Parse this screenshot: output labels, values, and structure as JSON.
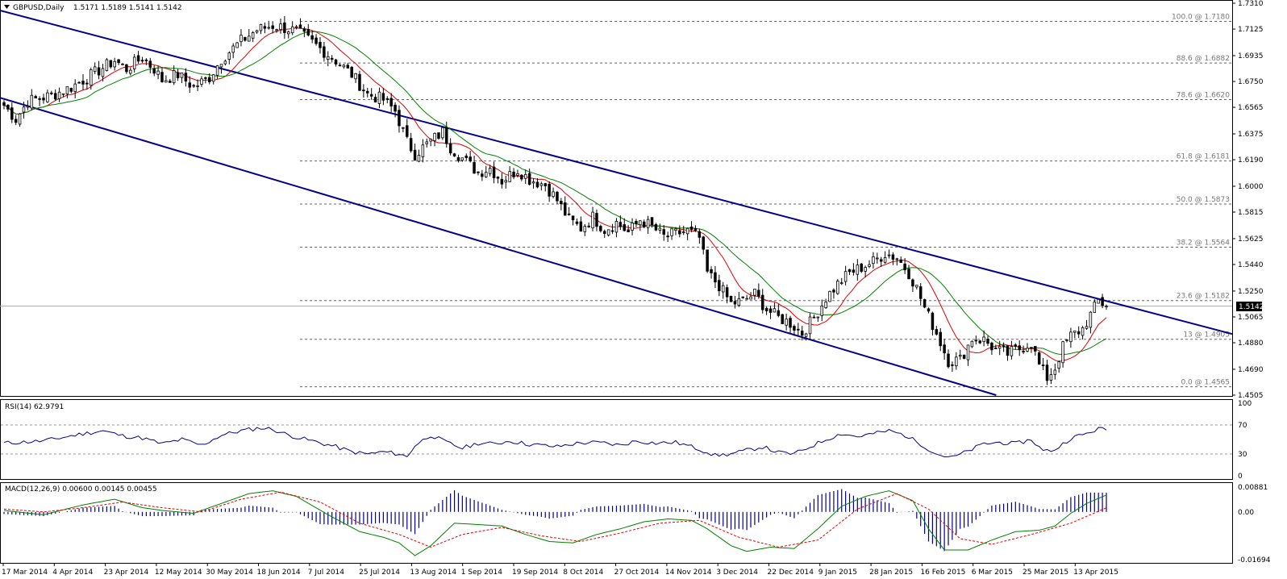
{
  "chart_data": [
    {
      "type": "candlestick",
      "symbol_title": "GBPUSD,Daily",
      "ohlc_readout": "1.5171 1.5189 1.5141 1.5142",
      "current_price_label": "1.5142",
      "ylim": [
        1.4505,
        1.731
      ],
      "y_ticks": [
        "1.7310",
        "1.7125",
        "1.6935",
        "1.6750",
        "1.6565",
        "1.6375",
        "1.6190",
        "1.6000",
        "1.5815",
        "1.5625",
        "1.5440",
        "1.5250",
        "1.5065",
        "1.4880",
        "1.4690",
        "1.4505"
      ],
      "x_ticks": [
        "17 Mar 2014",
        "4 Apr 2014",
        "23 Apr 2014",
        "12 May 2014",
        "30 May 2014",
        "18 Jun 2014",
        "7 Jul 2014",
        "25 Jul 2014",
        "13 Aug 2014",
        "1 Sep 2014",
        "19 Sep 2014",
        "8 Oct 2014",
        "27 Oct 2014",
        "14 Nov 2014",
        "3 Dec 2014",
        "22 Dec 2014",
        "9 Jan 2015",
        "28 Jan 2015",
        "16 Feb 2015",
        "6 Mar 2015",
        "25 Mar 2015",
        "13 Apr 2015"
      ],
      "fibonacci_levels": [
        {
          "label": "100.0 @ 1.7180",
          "price": 1.718
        },
        {
          "label": "88.6 @ 1.6882",
          "price": 1.6882
        },
        {
          "label": "78.6 @ 1.6620",
          "price": 1.662
        },
        {
          "label": "61.8 @ 1.6181",
          "price": 1.6181
        },
        {
          "label": "50.0 @ 1.5873",
          "price": 1.5873
        },
        {
          "label": "38.2 @ 1.5564",
          "price": 1.5564
        },
        {
          "label": "23.6 @ 1.5182",
          "price": 1.5182
        },
        {
          "label": "13 @ 1.4905",
          "price": 1.4905
        },
        {
          "label": "0.0 @ 1.4565",
          "price": 1.4565
        }
      ],
      "price_path": [
        [
          0,
          1.658
        ],
        [
          3,
          1.648
        ],
        [
          6,
          1.661
        ],
        [
          12,
          1.665
        ],
        [
          17,
          1.671
        ],
        [
          20,
          1.676
        ],
        [
          24,
          1.683
        ],
        [
          28,
          1.69
        ],
        [
          31,
          1.684
        ],
        [
          35,
          1.692
        ],
        [
          38,
          1.684
        ],
        [
          40,
          1.676
        ],
        [
          44,
          1.68
        ],
        [
          48,
          1.671
        ],
        [
          52,
          1.678
        ],
        [
          55,
          1.691
        ],
        [
          60,
          1.704
        ],
        [
          64,
          1.712
        ],
        [
          68,
          1.715
        ],
        [
          70,
          1.714
        ],
        [
          74,
          1.711
        ],
        [
          78,
          1.703
        ],
        [
          84,
          1.69
        ],
        [
          88,
          1.68
        ],
        [
          92,
          1.666
        ],
        [
          96,
          1.662
        ],
        [
          99,
          1.654
        ],
        [
          102,
          1.632
        ],
        [
          104,
          1.623
        ],
        [
          107,
          1.63
        ],
        [
          111,
          1.639
        ],
        [
          113,
          1.628
        ],
        [
          116,
          1.62
        ],
        [
          120,
          1.61
        ],
        [
          123,
          1.613
        ],
        [
          126,
          1.604
        ],
        [
          130,
          1.612
        ],
        [
          133,
          1.605
        ],
        [
          137,
          1.601
        ],
        [
          140,
          1.59
        ],
        [
          143,
          1.576
        ],
        [
          146,
          1.57
        ],
        [
          149,
          1.578
        ],
        [
          152,
          1.569
        ],
        [
          155,
          1.574
        ],
        [
          158,
          1.567
        ],
        [
          161,
          1.576
        ],
        [
          164,
          1.571
        ],
        [
          167,
          1.564
        ],
        [
          170,
          1.566
        ],
        [
          173,
          1.568
        ],
        [
          176,
          1.563
        ],
        [
          178,
          1.538
        ],
        [
          181,
          1.529
        ],
        [
          184,
          1.516
        ],
        [
          187,
          1.518
        ],
        [
          190,
          1.523
        ],
        [
          193,
          1.512
        ],
        [
          196,
          1.506
        ],
        [
          199,
          1.502
        ],
        [
          202,
          1.495
        ],
        [
          205,
          1.506
        ],
        [
          208,
          1.52
        ],
        [
          211,
          1.53
        ],
        [
          214,
          1.538
        ],
        [
          217,
          1.542
        ],
        [
          220,
          1.546
        ],
        [
          223,
          1.552
        ],
        [
          226,
          1.549
        ],
        [
          229,
          1.538
        ],
        [
          231,
          1.527
        ],
        [
          233,
          1.513
        ],
        [
          236,
          1.495
        ],
        [
          239,
          1.475
        ],
        [
          242,
          1.476
        ],
        [
          245,
          1.491
        ],
        [
          248,
          1.49
        ],
        [
          251,
          1.483
        ],
        [
          254,
          1.48
        ],
        [
          257,
          1.484
        ],
        [
          260,
          1.488
        ],
        [
          262,
          1.472
        ],
        [
          264,
          1.463
        ],
        [
          266,
          1.47
        ],
        [
          268,
          1.485
        ],
        [
          270,
          1.493
        ],
        [
          273,
          1.498
        ],
        [
          275,
          1.508
        ],
        [
          277,
          1.518
        ],
        [
          279,
          1.5142
        ]
      ],
      "rsi": {
        "label": "RSI(14) 62.9791",
        "ylim": [
          0,
          100
        ],
        "ticks": [
          "100",
          "70",
          "30",
          "0"
        ],
        "levels": [
          70,
          30
        ],
        "values": [
          [
            0,
            45
          ],
          [
            10,
            48
          ],
          [
            20,
            58
          ],
          [
            25,
            62
          ],
          [
            30,
            55
          ],
          [
            35,
            52
          ],
          [
            40,
            44
          ],
          [
            45,
            50
          ],
          [
            50,
            42
          ],
          [
            55,
            56
          ],
          [
            60,
            62
          ],
          [
            65,
            66
          ],
          [
            68,
            64
          ],
          [
            72,
            56
          ],
          [
            78,
            48
          ],
          [
            84,
            40
          ],
          [
            88,
            33
          ],
          [
            92,
            30
          ],
          [
            96,
            33
          ],
          [
            100,
            30
          ],
          [
            102,
            26
          ],
          [
            104,
            42
          ],
          [
            108,
            56
          ],
          [
            112,
            46
          ],
          [
            116,
            38
          ],
          [
            120,
            45
          ],
          [
            124,
            44
          ],
          [
            128,
            48
          ],
          [
            132,
            44
          ],
          [
            136,
            42
          ],
          [
            140,
            40
          ],
          [
            144,
            44
          ],
          [
            148,
            46
          ],
          [
            152,
            45
          ],
          [
            156,
            42
          ],
          [
            160,
            48
          ],
          [
            165,
            45
          ],
          [
            170,
            46
          ],
          [
            174,
            40
          ],
          [
            178,
            33
          ],
          [
            180,
            28
          ],
          [
            184,
            30
          ],
          [
            188,
            35
          ],
          [
            192,
            40
          ],
          [
            196,
            32
          ],
          [
            200,
            30
          ],
          [
            204,
            40
          ],
          [
            208,
            50
          ],
          [
            212,
            58
          ],
          [
            216,
            54
          ],
          [
            220,
            58
          ],
          [
            224,
            62
          ],
          [
            228,
            56
          ],
          [
            232,
            44
          ],
          [
            236,
            30
          ],
          [
            240,
            25
          ],
          [
            244,
            34
          ],
          [
            248,
            44
          ],
          [
            252,
            46
          ],
          [
            256,
            44
          ],
          [
            260,
            50
          ],
          [
            263,
            34
          ],
          [
            266,
            36
          ],
          [
            270,
            52
          ],
          [
            274,
            58
          ],
          [
            277,
            65
          ],
          [
            279,
            62.9791
          ]
        ]
      },
      "macd": {
        "label": "MACD(12,26,9) 0.00600 0.00145 0.00455",
        "ylim": [
          -0.01694,
          0.00881
        ],
        "ticks": [
          "0.00881",
          "0.00",
          "-0.01694"
        ],
        "macd_line": [
          [
            0,
            0.0005
          ],
          [
            10,
            -0.001
          ],
          [
            20,
            0.0025
          ],
          [
            28,
            0.0045
          ],
          [
            35,
            0.0015
          ],
          [
            40,
            0.0005
          ],
          [
            48,
            -0.0005
          ],
          [
            55,
            0.003
          ],
          [
            62,
            0.0065
          ],
          [
            68,
            0.0075
          ],
          [
            74,
            0.0055
          ],
          [
            82,
            -0.001
          ],
          [
            90,
            -0.007
          ],
          [
            96,
            -0.009
          ],
          [
            100,
            -0.011
          ],
          [
            104,
            -0.0155
          ],
          [
            108,
            -0.012
          ],
          [
            114,
            -0.004
          ],
          [
            120,
            -0.0045
          ],
          [
            126,
            -0.005
          ],
          [
            132,
            -0.008
          ],
          [
            138,
            -0.0105
          ],
          [
            144,
            -0.011
          ],
          [
            150,
            -0.008
          ],
          [
            156,
            -0.006
          ],
          [
            162,
            -0.0035
          ],
          [
            168,
            -0.0025
          ],
          [
            174,
            -0.003
          ],
          [
            178,
            -0.006
          ],
          [
            184,
            -0.012
          ],
          [
            188,
            -0.014
          ],
          [
            194,
            -0.0125
          ],
          [
            200,
            -0.013
          ],
          [
            206,
            -0.006
          ],
          [
            212,
            0.002
          ],
          [
            218,
            0.0055
          ],
          [
            224,
            0.0075
          ],
          [
            230,
            0.004
          ],
          [
            234,
            -0.006
          ],
          [
            238,
            -0.0135
          ],
          [
            244,
            -0.0135
          ],
          [
            250,
            -0.01
          ],
          [
            256,
            -0.007
          ],
          [
            262,
            -0.0065
          ],
          [
            266,
            -0.005
          ],
          [
            270,
            -0.0005
          ],
          [
            274,
            0.003
          ],
          [
            279,
            0.006
          ]
        ],
        "signal_line": [
          [
            0,
            0.001
          ],
          [
            10,
            0.0
          ],
          [
            20,
            0.0015
          ],
          [
            30,
            0.0035
          ],
          [
            40,
            0.0015
          ],
          [
            50,
            0.0
          ],
          [
            60,
            0.0045
          ],
          [
            70,
            0.007
          ],
          [
            80,
            0.0035
          ],
          [
            90,
            -0.004
          ],
          [
            100,
            -0.008
          ],
          [
            108,
            -0.0125
          ],
          [
            116,
            -0.008
          ],
          [
            126,
            -0.0055
          ],
          [
            136,
            -0.0085
          ],
          [
            146,
            -0.0105
          ],
          [
            156,
            -0.0075
          ],
          [
            166,
            -0.004
          ],
          [
            176,
            -0.003
          ],
          [
            186,
            -0.009
          ],
          [
            196,
            -0.0125
          ],
          [
            206,
            -0.01
          ],
          [
            216,
            0.001
          ],
          [
            226,
            0.0065
          ],
          [
            234,
            0.001
          ],
          [
            242,
            -0.0095
          ],
          [
            250,
            -0.0115
          ],
          [
            260,
            -0.008
          ],
          [
            270,
            -0.004
          ],
          [
            279,
            0.00145
          ]
        ],
        "histogram_scale": 0.5
      }
    }
  ]
}
